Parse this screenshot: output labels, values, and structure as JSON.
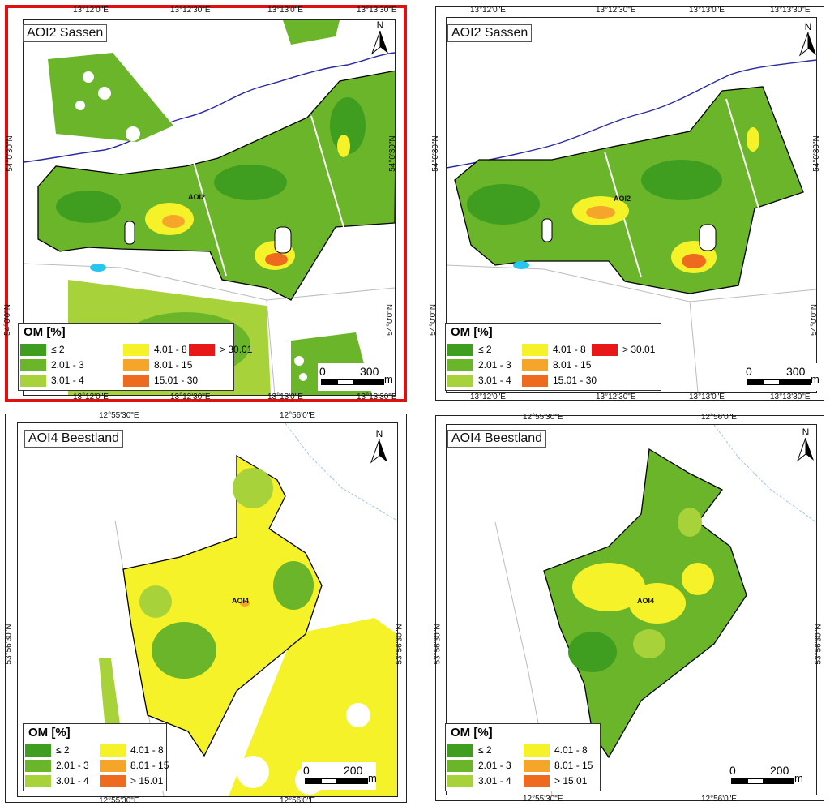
{
  "panels": [
    {
      "title": "AOI2 Sassen",
      "top_ticks": [
        "13°12'0\"E",
        "13°12'30\"E",
        "13°13'0\"E",
        "13°13'30\"E"
      ],
      "bottom_ticks": [
        "13°12'0\"E",
        "13°12'30\"E",
        "13°13'0\"E",
        "13°13'30\"E"
      ],
      "left_ticks": [
        "54°0'30\"N",
        "54°0'0\"N"
      ],
      "right_ticks": [
        "54°0'30\"N",
        "54°0'0\"N"
      ],
      "label": "AOI2",
      "north": "N",
      "scale": {
        "zero": "0",
        "max": "300",
        "unit": "m"
      },
      "legend": {
        "title": "OM [%]",
        "items": [
          "≤ 2",
          "2.01 - 3",
          "3.01 - 4",
          "4.01 - 8",
          "8.01 - 15",
          "15.01 - 30",
          "> 30.01"
        ]
      },
      "selected": true
    },
    {
      "title": "AOI2 Sassen",
      "top_ticks": [
        "13°12'0\"E",
        "13°12'30\"E",
        "13°13'0\"E",
        "13°13'30\"E"
      ],
      "bottom_ticks": [
        "13°12'0\"E",
        "13°12'30\"E",
        "13°13'0\"E",
        "13°13'30\"E"
      ],
      "left_ticks": [
        "54°0'30\"N",
        "54°0'0\"N"
      ],
      "right_ticks": [
        "54°0'30\"N",
        "54°0'0\"N"
      ],
      "label": "AOI2",
      "north": "N",
      "scale": {
        "zero": "0",
        "max": "300",
        "unit": "m"
      },
      "legend": {
        "title": "OM [%]",
        "items": [
          "≤ 2",
          "2.01 - 3",
          "3.01 - 4",
          "4.01 - 8",
          "8.01 - 15",
          "15.01 - 30",
          "> 30.01"
        ]
      },
      "selected": false
    },
    {
      "title": "AOI4 Beestland",
      "top_ticks": [
        "12°55'30\"E",
        "12°56'0\"E"
      ],
      "bottom_ticks": [
        "12°55'30\"E",
        "12°56'0\"E"
      ],
      "left_ticks": [
        "53°56'30\"N"
      ],
      "right_ticks": [
        "53°56'30\"N"
      ],
      "label": "AOI4",
      "north": "N",
      "scale": {
        "zero": "0",
        "max": "200",
        "unit": "m"
      },
      "legend": {
        "title": "OM [%]",
        "items": [
          "≤ 2",
          "2.01 - 3",
          "3.01 - 4",
          "4.01 - 8",
          "8.01 - 15",
          "> 15.01"
        ]
      },
      "selected": false
    },
    {
      "title": "AOI4 Beestland",
      "top_ticks": [
        "12°55'30\"E",
        "12°56'0\"E"
      ],
      "bottom_ticks": [
        "12°55'30\"E",
        "12°56'0\"E"
      ],
      "left_ticks": [
        "53°56'30\"N"
      ],
      "right_ticks": [
        "53°56'30\"N"
      ],
      "label": "AOI4",
      "north": "N",
      "scale": {
        "zero": "0",
        "max": "200",
        "unit": "m"
      },
      "legend": {
        "title": "OM [%]",
        "items": [
          "≤ 2",
          "2.01 - 3",
          "3.01 - 4",
          "4.01 - 8",
          "8.01 - 15",
          "> 15.01"
        ]
      },
      "selected": false
    }
  ],
  "colors": {
    "class1": "#3f9e1f",
    "class2": "#6bb52a",
    "class3": "#a8d23a",
    "class4": "#f5f22a",
    "class5": "#f4a52a",
    "class6": "#ee6a1e",
    "class7": "#e81818",
    "river": "#2a2aa0",
    "water": "#28c6ef",
    "selected_border": "#e01010"
  }
}
